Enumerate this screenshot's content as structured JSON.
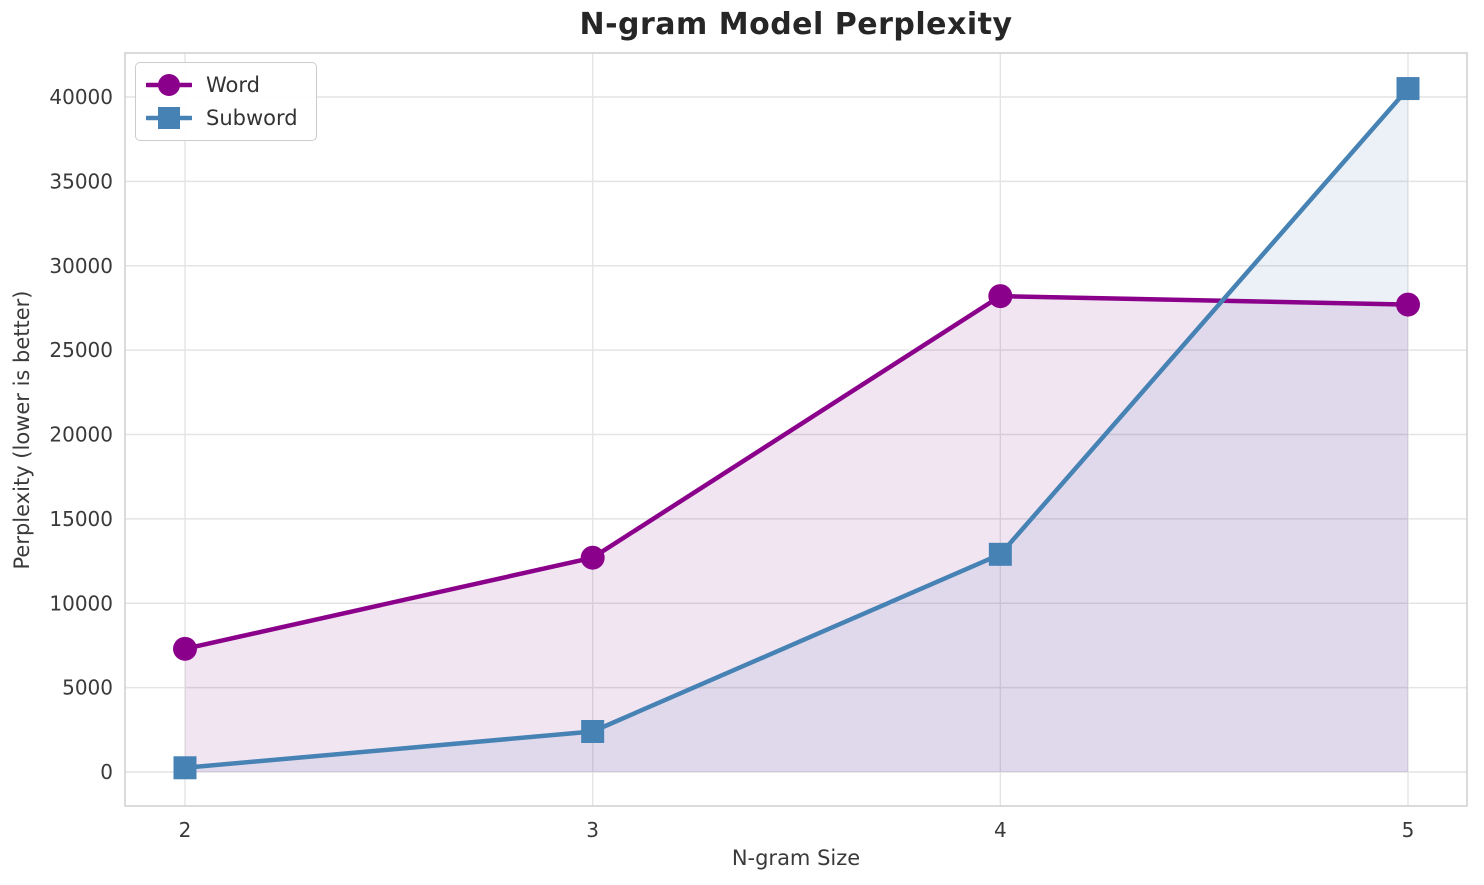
{
  "chart_data": {
    "type": "line",
    "title": "N-gram Model Perplexity",
    "xlabel": "N-gram Size",
    "ylabel": "Perplexity (lower is better)",
    "x": [
      2,
      3,
      4,
      5
    ],
    "xticks": [
      "2",
      "3",
      "4",
      "5"
    ],
    "yticks": [
      0,
      5000,
      10000,
      15000,
      20000,
      25000,
      30000,
      35000,
      40000
    ],
    "xlim": [
      1.85,
      5.15
    ],
    "ylim": [
      -2000,
      42600
    ],
    "grid": true,
    "legend_position": "upper left",
    "series": [
      {
        "name": "Word",
        "marker": "circle",
        "color": "#8B008B",
        "fill_color": "rgba(128,0,128,0.10)",
        "values": [
          7300,
          12700,
          28200,
          27700
        ]
      },
      {
        "name": "Subword",
        "marker": "square",
        "color": "#4682B4",
        "fill_color": "rgba(70,130,180,0.11)",
        "values": [
          250,
          2400,
          12900,
          40500
        ]
      }
    ],
    "style": {
      "grid_color": "#e4e4e4",
      "spine_color": "#d2d2d2",
      "background": "#ffffff"
    }
  }
}
